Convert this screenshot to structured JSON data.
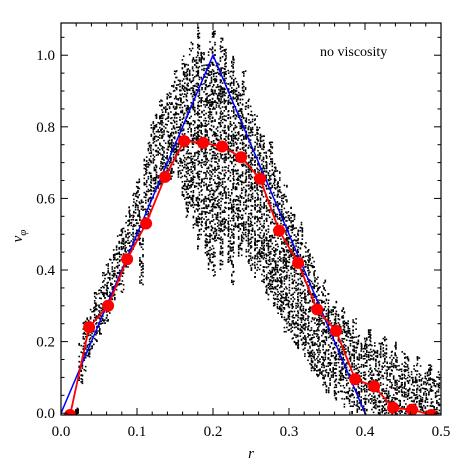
{
  "chart_data": {
    "type": "scatter",
    "xlabel": "r",
    "ylabel": "v",
    "ylabel_subscript": "φ",
    "annotation": "no viscosity",
    "xlim": [
      0.0,
      0.5
    ],
    "ylim": [
      -0.005,
      1.09
    ],
    "x_ticks": [
      0.0,
      0.1,
      0.2,
      0.3,
      0.4,
      0.5
    ],
    "x_tick_labels": [
      "0.0",
      "0.1",
      "0.2",
      "0.3",
      "0.4",
      "0.5"
    ],
    "y_ticks": [
      0.0,
      0.2,
      0.4,
      0.6,
      0.8,
      1.0
    ],
    "y_tick_labels": [
      "0.0",
      "0.2",
      "0.4",
      "0.6",
      "0.8",
      "1.0"
    ],
    "grid": false,
    "series": [
      {
        "kind": "scatter",
        "color": "#000000",
        "point_style": "dot",
        "x": [
          0.02,
          0.025,
          0.03,
          0.035,
          0.04,
          0.045,
          0.05,
          0.055,
          0.06,
          0.065,
          0.07,
          0.075,
          0.08,
          0.085,
          0.09,
          0.095,
          0.1,
          0.105,
          0.11,
          0.115,
          0.12,
          0.125,
          0.13,
          0.135,
          0.14,
          0.145,
          0.15,
          0.155,
          0.16,
          0.165,
          0.17,
          0.175,
          0.18,
          0.185,
          0.19,
          0.195,
          0.2,
          0.205,
          0.21,
          0.215,
          0.22,
          0.225,
          0.23,
          0.235,
          0.24,
          0.245,
          0.25,
          0.255,
          0.26,
          0.265,
          0.27,
          0.275,
          0.28,
          0.285,
          0.29,
          0.295,
          0.3,
          0.305,
          0.31,
          0.315,
          0.32,
          0.325,
          0.33,
          0.335,
          0.34,
          0.345,
          0.35,
          0.355,
          0.36,
          0.365,
          0.37,
          0.375,
          0.38,
          0.385,
          0.39,
          0.395,
          0.4,
          0.405,
          0.41,
          0.415,
          0.42,
          0.425,
          0.43,
          0.435,
          0.44,
          0.445,
          0.45,
          0.455,
          0.46,
          0.465,
          0.47,
          0.475,
          0.48,
          0.485,
          0.49,
          0.495
        ],
        "y_low": [
          0.0,
          0.08,
          0.12,
          0.16,
          0.18,
          0.2,
          0.22,
          0.24,
          0.26,
          0.28,
          0.32,
          0.36,
          0.34,
          0.4,
          0.44,
          0.46,
          0.48,
          0.36,
          0.52,
          0.55,
          0.6,
          0.62,
          0.64,
          0.66,
          0.68,
          0.64,
          0.7,
          0.66,
          0.6,
          0.55,
          0.58,
          0.52,
          0.46,
          0.5,
          0.44,
          0.4,
          0.38,
          0.48,
          0.4,
          0.5,
          0.42,
          0.36,
          0.52,
          0.44,
          0.48,
          0.42,
          0.4,
          0.38,
          0.4,
          0.36,
          0.32,
          0.34,
          0.3,
          0.28,
          0.26,
          0.22,
          0.22,
          0.2,
          0.18,
          0.18,
          0.16,
          0.14,
          0.12,
          0.1,
          0.1,
          0.08,
          0.06,
          0.08,
          0.04,
          0.06,
          0.02,
          0.04,
          0.0,
          0.02,
          0.0,
          0.0,
          0.0,
          0.02,
          0.0,
          0.0,
          0.0,
          0.0,
          0.0,
          0.0,
          0.0,
          0.0,
          0.0,
          0.0,
          0.0,
          0.0,
          0.0,
          0.0,
          0.0,
          0.0,
          0.0,
          0.0
        ],
        "y_high": [
          0.02,
          0.2,
          0.26,
          0.28,
          0.3,
          0.34,
          0.36,
          0.4,
          0.42,
          0.44,
          0.48,
          0.5,
          0.52,
          0.56,
          0.58,
          0.62,
          0.66,
          0.6,
          0.72,
          0.76,
          0.82,
          0.84,
          0.88,
          0.86,
          0.9,
          0.92,
          0.96,
          0.94,
          1.0,
          0.98,
          1.04,
          1.0,
          1.08,
          1.02,
          0.98,
          1.04,
          1.08,
          0.98,
          1.06,
          1.02,
          0.96,
          1.0,
          0.94,
          0.92,
          0.96,
          0.88,
          0.86,
          0.84,
          0.8,
          0.78,
          0.74,
          0.76,
          0.7,
          0.68,
          0.62,
          0.64,
          0.58,
          0.56,
          0.52,
          0.54,
          0.48,
          0.46,
          0.44,
          0.4,
          0.36,
          0.38,
          0.34,
          0.3,
          0.32,
          0.28,
          0.3,
          0.26,
          0.24,
          0.28,
          0.22,
          0.2,
          0.22,
          0.24,
          0.2,
          0.18,
          0.2,
          0.22,
          0.16,
          0.18,
          0.2,
          0.14,
          0.18,
          0.16,
          0.12,
          0.14,
          0.16,
          0.1,
          0.12,
          0.14,
          0.1,
          0.12
        ]
      },
      {
        "kind": "line",
        "color": "#0000ff",
        "x": [
          0.0,
          0.2,
          0.4
        ],
        "y": [
          0.0,
          1.0,
          0.0
        ]
      },
      {
        "kind": "line_markers",
        "color": "#ff0000",
        "x": [
          0.012,
          0.037,
          0.062,
          0.087,
          0.112,
          0.137,
          0.162,
          0.187,
          0.212,
          0.237,
          0.262,
          0.287,
          0.312,
          0.337,
          0.362,
          0.387,
          0.412,
          0.437,
          0.462,
          0.487
        ],
        "y": [
          -0.005,
          0.24,
          0.3,
          0.43,
          0.53,
          0.66,
          0.76,
          0.755,
          0.745,
          0.715,
          0.655,
          0.51,
          0.42,
          0.29,
          0.23,
          0.095,
          0.075,
          0.015,
          0.01,
          -0.005
        ]
      }
    ]
  }
}
